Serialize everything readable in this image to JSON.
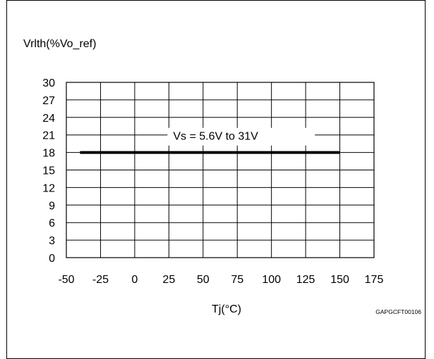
{
  "chart_data": {
    "type": "line",
    "ylabel": "Vrlth(%Vo_ref)",
    "xlabel": "Tj(°C)",
    "figure_code": "GAPGCFT00106",
    "xlim": [
      -50,
      175
    ],
    "ylim": [
      0,
      30
    ],
    "x_ticks": [
      "-50",
      "-25",
      "0",
      "25",
      "50",
      "75",
      "100",
      "125",
      "150",
      "175"
    ],
    "y_ticks": [
      "0",
      "3",
      "6",
      "9",
      "12",
      "15",
      "18",
      "21",
      "24",
      "27",
      "30"
    ],
    "grid": true,
    "series": [
      {
        "name": "Vs = 5.6V to 31V",
        "x": [
          -40,
          150
        ],
        "y": [
          18,
          18
        ]
      }
    ],
    "line_color": "#000000"
  }
}
